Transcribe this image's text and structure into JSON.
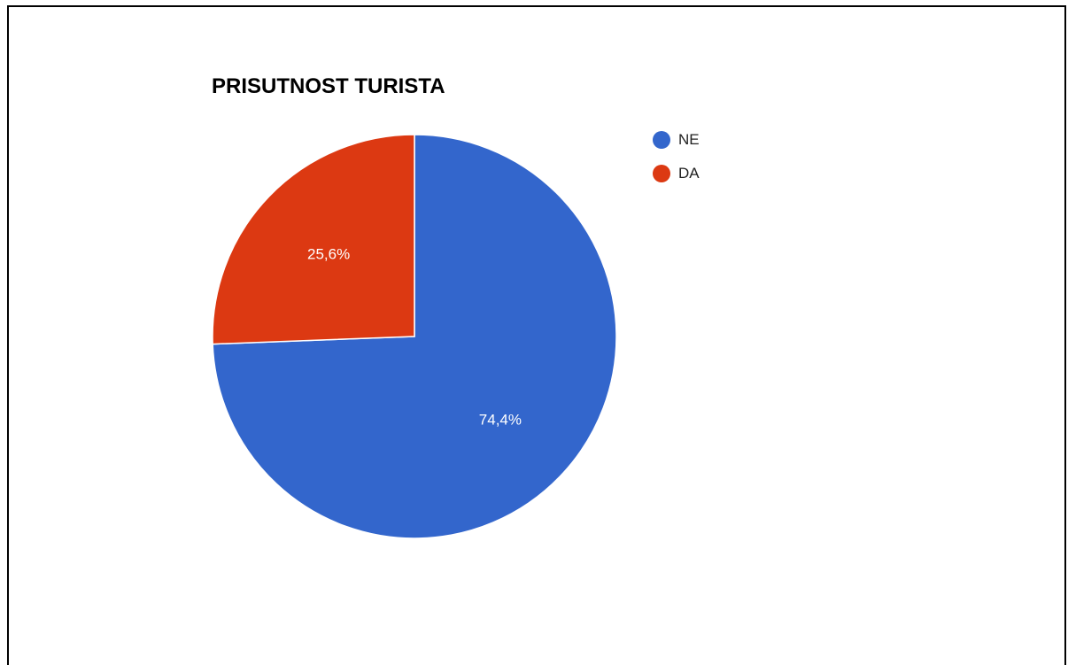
{
  "chart_data": {
    "type": "pie",
    "title": "PRISUTNOST TURISTA",
    "slices": [
      {
        "label": "NE",
        "value": 74.4,
        "display": "74,4%",
        "color": "#3366cc"
      },
      {
        "label": "DA",
        "value": 25.6,
        "display": "25,6%",
        "color": "#dc3912"
      }
    ],
    "legend_position": "right"
  }
}
